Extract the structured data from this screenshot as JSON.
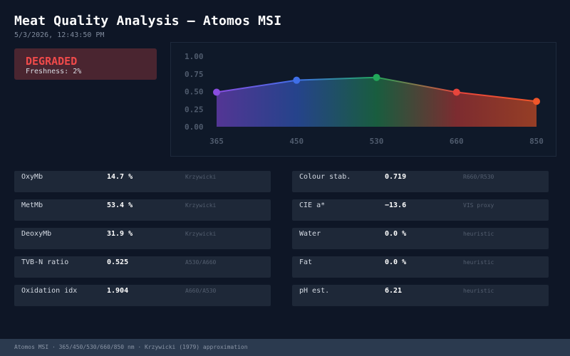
{
  "header": {
    "title": "Meat Quality Analysis — Atomos MSI",
    "timestamp": "5/3/2026, 12:43:50 PM"
  },
  "status": {
    "label": "DEGRADED",
    "freshness": "Freshness: 2%",
    "color": "#f04a4a"
  },
  "chart_data": {
    "type": "area",
    "x": [
      365,
      450,
      530,
      660,
      850
    ],
    "categories": [
      "365",
      "450",
      "530",
      "660",
      "850"
    ],
    "values": [
      0.49,
      0.66,
      0.7,
      0.49,
      0.36
    ],
    "point_colors": [
      "#8a4de0",
      "#3f6fe8",
      "#22a85a",
      "#e8453c",
      "#f0562a"
    ],
    "ylim": [
      0,
      1
    ],
    "yticks": [
      "1.00",
      "0.75",
      "0.50",
      "0.25",
      "0.00"
    ],
    "xlabel": "",
    "ylabel": "",
    "title": ""
  },
  "metrics_left": [
    {
      "label": "OxyMb",
      "value": "14.7 %",
      "source": "Krzywicki"
    },
    {
      "label": "MetMb",
      "value": "53.4 %",
      "source": "Krzywicki"
    },
    {
      "label": "DeoxyMb",
      "value": "31.9 %",
      "source": "Krzywicki"
    },
    {
      "label": "TVB-N ratio",
      "value": "0.525",
      "source": "A530/A660"
    },
    {
      "label": "Oxidation idx",
      "value": "1.904",
      "source": "A660/A530"
    }
  ],
  "metrics_right": [
    {
      "label": "Colour stab.",
      "value": "0.719",
      "source": "R660/R530"
    },
    {
      "label": "CIE a*",
      "value": "−13.6",
      "source": "VIS proxy"
    },
    {
      "label": "Water",
      "value": "0.0 %",
      "source": "heuristic"
    },
    {
      "label": "Fat",
      "value": "0.0 %",
      "source": "heuristic"
    },
    {
      "label": "pH est.",
      "value": "6.21",
      "source": "heuristic"
    }
  ],
  "footer": {
    "text": "Atomos MSI · 365/450/530/660/850 nm · Krzywicki (1979) approximation"
  }
}
